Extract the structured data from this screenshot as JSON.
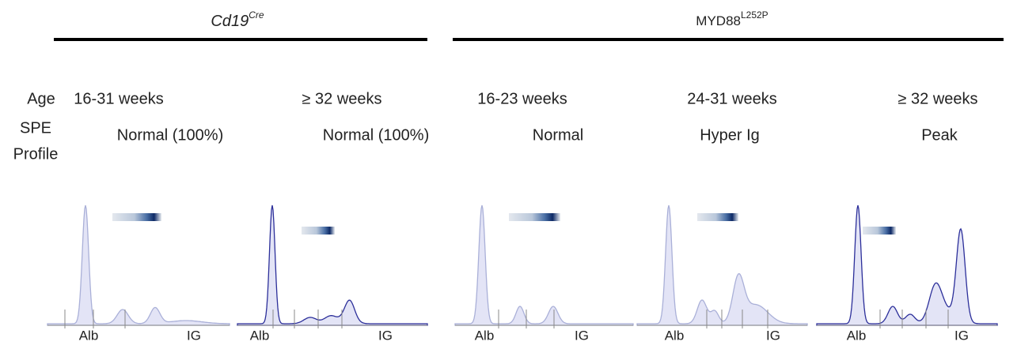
{
  "groups": [
    {
      "label": "Cd19",
      "superscript": "Cre"
    },
    {
      "label": "MYD88",
      "superscript": "L252P"
    }
  ],
  "row_labels": {
    "age": "Age",
    "spe": [
      "SPE",
      "Profile"
    ]
  },
  "columns": [
    {
      "age": "16-31 weeks",
      "profile": "Normal (100%)",
      "alb": "Alb",
      "ig": "IG"
    },
    {
      "age": "≥ 32 weeks",
      "profile": "Normal (100%)",
      "alb": "Alb",
      "ig": "IG"
    },
    {
      "age": "16-23 weeks",
      "profile": "Normal",
      "alb": "Alb",
      "ig": "IG"
    },
    {
      "age": "24-31 weeks",
      "profile": "Hyper Ig",
      "alb": "Alb",
      "ig": "IG"
    },
    {
      "age": "≥ 32 weeks",
      "profile": "Peak",
      "alb": "Alb",
      "ig": "IG"
    }
  ]
}
